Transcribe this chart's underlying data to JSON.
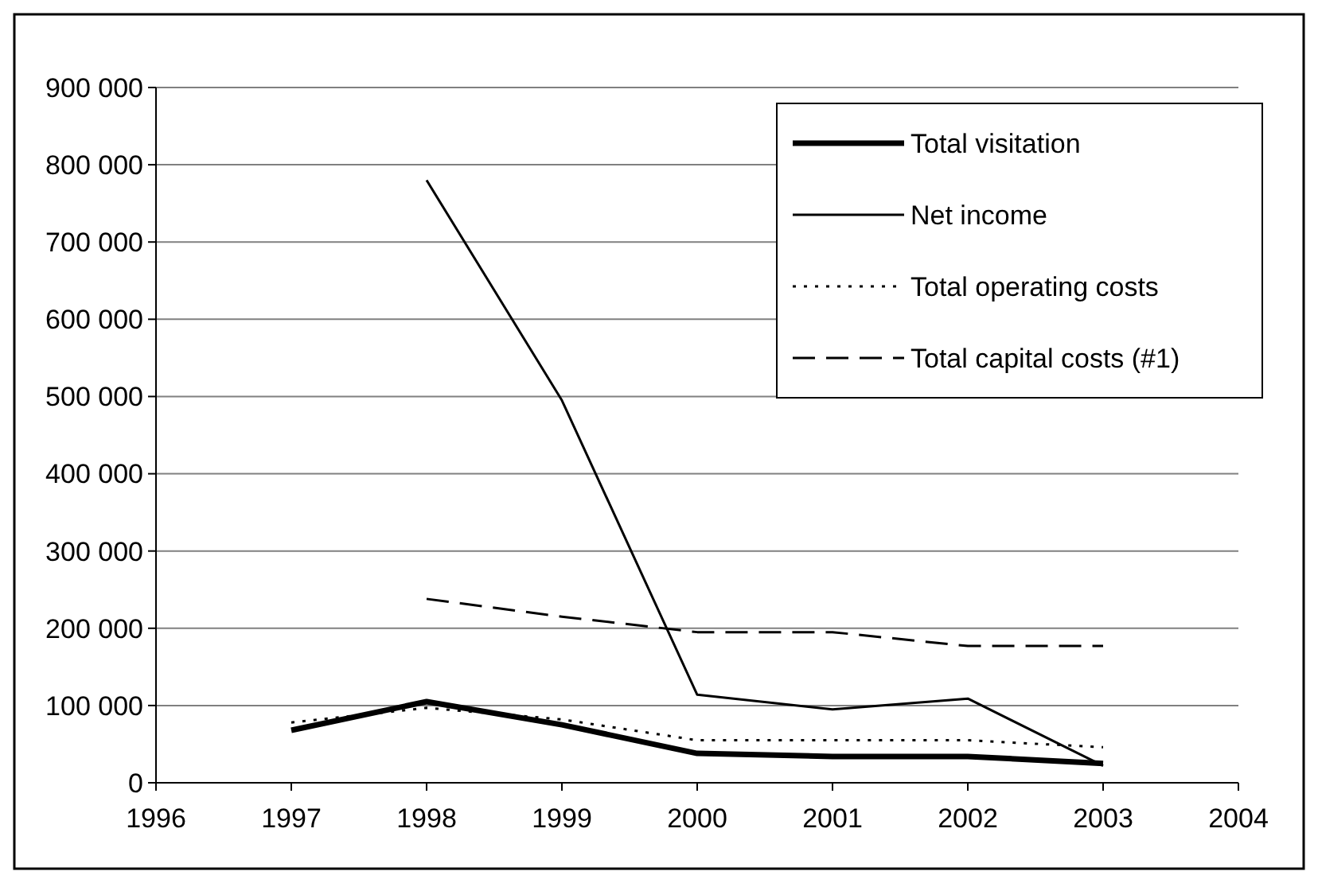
{
  "chart_data": {
    "type": "line",
    "x": [
      1997,
      1998,
      1999,
      2000,
      2001,
      2002,
      2003
    ],
    "series": [
      {
        "name": "Total visitation",
        "color": "#000000",
        "line_style": "solid",
        "values": [
          68000,
          105000,
          75000,
          38000,
          34000,
          34000,
          25000
        ]
      },
      {
        "name": "Net income",
        "color": "#000000",
        "line_style": "solid",
        "values": [
          null,
          780000,
          495000,
          114000,
          95000,
          109000,
          22000
        ]
      },
      {
        "name": "Total operating costs",
        "color": "#000000",
        "line_style": "dotted",
        "values": [
          78000,
          97000,
          82000,
          55000,
          55000,
          55000,
          46000
        ]
      },
      {
        "name": "Total capital costs (#1)",
        "color": "#000000",
        "line_style": "dashed",
        "values": [
          null,
          238000,
          215000,
          195000,
          195000,
          177000,
          177000
        ]
      }
    ],
    "xlim": [
      1996,
      2004
    ],
    "xticks": [
      1996,
      1997,
      1998,
      1999,
      2000,
      2001,
      2002,
      2003,
      2004
    ],
    "ylim": [
      0,
      900000
    ],
    "yticks": [
      {
        "value": 0,
        "label": "0"
      },
      {
        "value": 100000,
        "label": "100 000"
      },
      {
        "value": 200000,
        "label": "200 000"
      },
      {
        "value": 300000,
        "label": "300 000"
      },
      {
        "value": 400000,
        "label": "400 000"
      },
      {
        "value": 500000,
        "label": "500 000"
      },
      {
        "value": 600000,
        "label": "600 000"
      },
      {
        "value": 700000,
        "label": "700 000"
      },
      {
        "value": 800000,
        "label": "800 000"
      },
      {
        "value": 900000,
        "label": "900 000"
      }
    ],
    "grid": "y",
    "legend": "top right",
    "marker": "none"
  }
}
